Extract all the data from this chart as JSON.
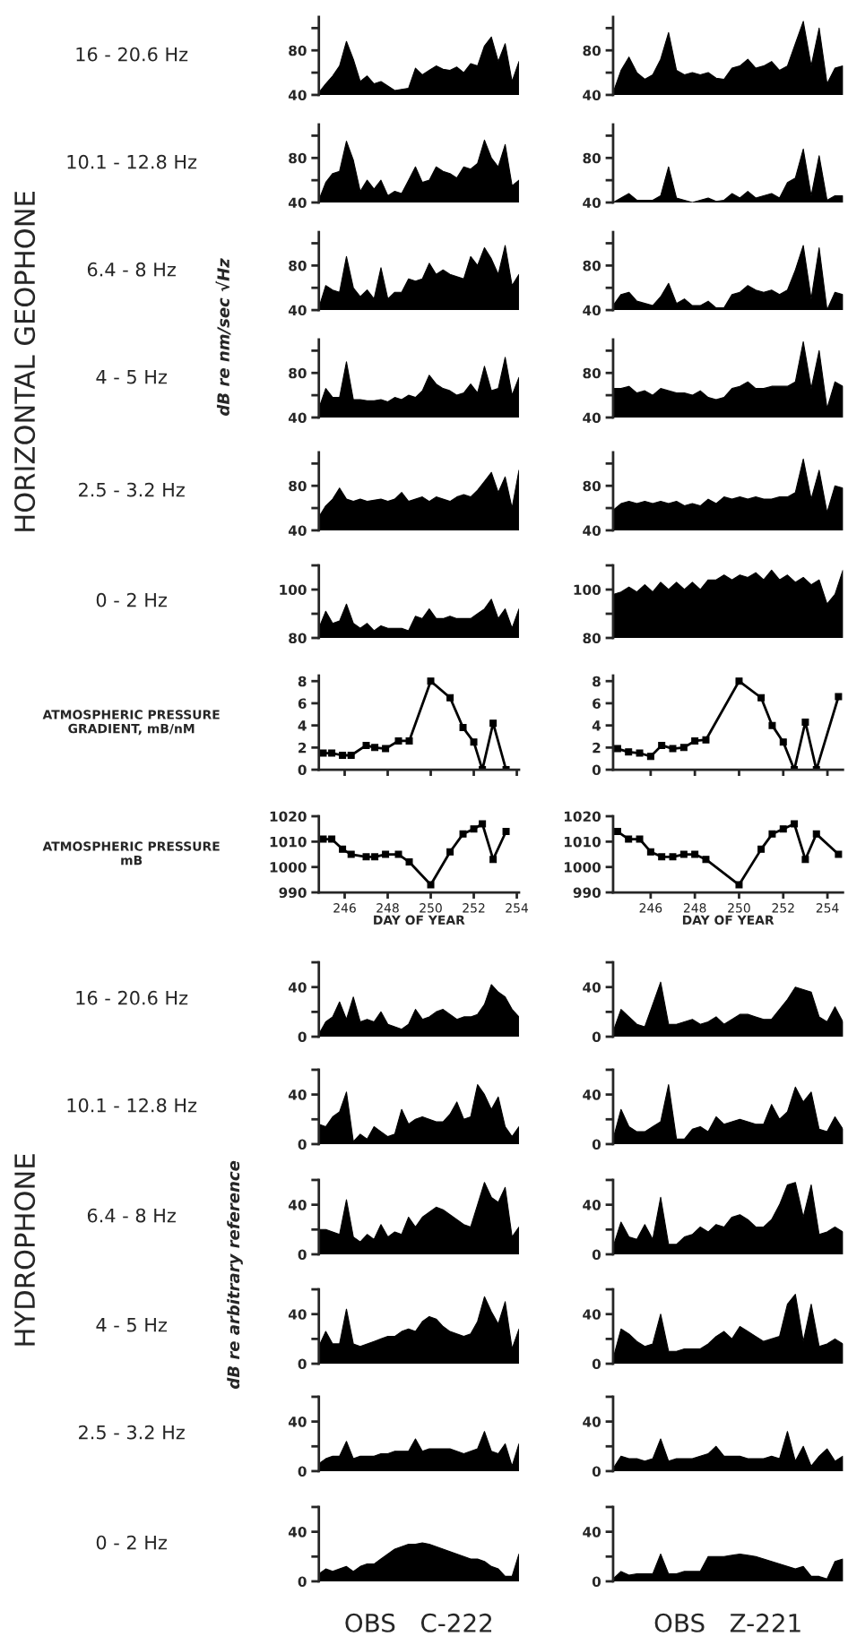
{
  "chart_data": [
    {
      "type": "area",
      "ylabel": "16 - 20.6 Hz",
      "categories": [
        null,
        null,
        null,
        null,
        null,
        null,
        null,
        null,
        null,
        null,
        null,
        null,
        null,
        null,
        null,
        null,
        null,
        null,
        null,
        null,
        null,
        null,
        null,
        null,
        null,
        null,
        null,
        null,
        null,
        null
      ],
      "values": [
        42,
        50,
        57,
        66,
        88,
        72,
        52,
        57,
        50,
        52,
        48,
        44,
        45,
        46,
        64,
        58,
        62,
        66,
        63,
        62,
        65,
        60,
        68,
        66,
        84,
        92,
        70,
        86,
        52,
        70
      ],
      "color": "#000000",
      "ylim": [
        40,
        110
      ],
      "yticks": [
        40,
        {
          "value": 60,
          "label": null
        },
        80,
        {
          "value": 100,
          "label": null
        }
      ]
    },
    {
      "type": "area",
      "categories": [
        null,
        null,
        null,
        null,
        null,
        null,
        null,
        null,
        null,
        null,
        null,
        null,
        null,
        null,
        null,
        null,
        null,
        null,
        null,
        null,
        null,
        null,
        null,
        null,
        null,
        null,
        null,
        null,
        null,
        null
      ],
      "values": [
        42,
        62,
        74,
        60,
        54,
        58,
        72,
        96,
        62,
        58,
        60,
        58,
        60,
        55,
        54,
        64,
        66,
        72,
        64,
        66,
        70,
        62,
        66,
        86,
        106,
        66,
        100,
        50,
        64,
        66
      ],
      "color": "#000000",
      "ylim": [
        40,
        110
      ],
      "yticks": [
        40,
        {
          "value": 60,
          "label": null
        },
        80,
        {
          "value": 100,
          "label": null
        }
      ]
    },
    {
      "type": "area",
      "ylabel": "10.1 - 12.8 Hz",
      "categories": [
        null,
        null,
        null,
        null,
        null,
        null,
        null,
        null,
        null,
        null,
        null,
        null,
        null,
        null,
        null,
        null,
        null,
        null,
        null,
        null,
        null,
        null,
        null,
        null,
        null,
        null,
        null,
        null,
        null,
        null
      ],
      "values": [
        42,
        58,
        66,
        68,
        95,
        78,
        50,
        60,
        52,
        60,
        46,
        50,
        48,
        60,
        72,
        58,
        60,
        72,
        68,
        66,
        62,
        72,
        70,
        75,
        96,
        80,
        72,
        92,
        55,
        60
      ],
      "color": "#000000",
      "ylim": [
        40,
        110
      ],
      "yticks": [
        40,
        {
          "value": 60,
          "label": null
        },
        80,
        {
          "value": 100,
          "label": null
        }
      ]
    },
    {
      "type": "area",
      "categories": [
        null,
        null,
        null,
        null,
        null,
        null,
        null,
        null,
        null,
        null,
        null,
        null,
        null,
        null,
        null,
        null,
        null,
        null,
        null,
        null,
        null,
        null,
        null,
        null,
        null,
        null,
        null,
        null,
        null,
        null
      ],
      "values": [
        40,
        44,
        48,
        42,
        42,
        42,
        46,
        72,
        44,
        42,
        40,
        42,
        44,
        41,
        42,
        48,
        44,
        50,
        44,
        46,
        48,
        44,
        58,
        62,
        88,
        46,
        82,
        42,
        46,
        46
      ],
      "color": "#000000",
      "ylim": [
        40,
        110
      ],
      "yticks": [
        40,
        {
          "value": 60,
          "label": null
        },
        80,
        {
          "value": 100,
          "label": null
        }
      ]
    },
    {
      "type": "area",
      "ylabel": "6.4 - 8 Hz",
      "categories": [
        null,
        null,
        null,
        null,
        null,
        null,
        null,
        null,
        null,
        null,
        null,
        null,
        null,
        null,
        null,
        null,
        null,
        null,
        null,
        null,
        null,
        null,
        null,
        null,
        null,
        null,
        null,
        null,
        null,
        null
      ],
      "values": [
        42,
        62,
        58,
        56,
        88,
        60,
        52,
        58,
        50,
        78,
        50,
        56,
        56,
        68,
        66,
        68,
        82,
        72,
        76,
        72,
        70,
        68,
        88,
        80,
        96,
        86,
        72,
        98,
        62,
        72
      ],
      "color": "#000000",
      "ylim": [
        40,
        110
      ],
      "yticks": [
        40,
        {
          "value": 60,
          "label": null
        },
        80,
        {
          "value": 100,
          "label": null
        }
      ]
    },
    {
      "type": "area",
      "categories": [
        null,
        null,
        null,
        null,
        null,
        null,
        null,
        null,
        null,
        null,
        null,
        null,
        null,
        null,
        null,
        null,
        null,
        null,
        null,
        null,
        null,
        null,
        null,
        null,
        null,
        null,
        null,
        null,
        null,
        null
      ],
      "values": [
        44,
        54,
        56,
        48,
        46,
        44,
        52,
        64,
        46,
        50,
        44,
        44,
        48,
        42,
        42,
        54,
        56,
        62,
        58,
        56,
        58,
        54,
        58,
        76,
        98,
        50,
        96,
        40,
        56,
        54
      ],
      "color": "#000000",
      "ylim": [
        40,
        110
      ],
      "yticks": [
        40,
        {
          "value": 60,
          "label": null
        },
        80,
        {
          "value": 100,
          "label": null
        }
      ]
    },
    {
      "type": "area",
      "ylabel": "4 - 5 Hz",
      "categories": [
        null,
        null,
        null,
        null,
        null,
        null,
        null,
        null,
        null,
        null,
        null,
        null,
        null,
        null,
        null,
        null,
        null,
        null,
        null,
        null,
        null,
        null,
        null,
        null,
        null,
        null,
        null,
        null,
        null,
        null
      ],
      "values": [
        48,
        66,
        58,
        58,
        90,
        56,
        56,
        55,
        55,
        56,
        54,
        58,
        56,
        60,
        58,
        64,
        78,
        70,
        66,
        64,
        60,
        62,
        70,
        62,
        86,
        64,
        66,
        94,
        60,
        76
      ],
      "color": "#000000",
      "ylim": [
        40,
        110
      ],
      "yticks": [
        40,
        {
          "value": 60,
          "label": null
        },
        80,
        {
          "value": 100,
          "label": null
        }
      ]
    },
    {
      "type": "area",
      "categories": [
        null,
        null,
        null,
        null,
        null,
        null,
        null,
        null,
        null,
        null,
        null,
        null,
        null,
        null,
        null,
        null,
        null,
        null,
        null,
        null,
        null,
        null,
        null,
        null,
        null,
        null,
        null,
        null,
        null,
        null
      ],
      "values": [
        66,
        66,
        68,
        62,
        64,
        60,
        66,
        64,
        62,
        62,
        60,
        64,
        58,
        56,
        58,
        66,
        68,
        72,
        66,
        66,
        68,
        68,
        68,
        72,
        108,
        66,
        100,
        48,
        72,
        68
      ],
      "color": "#000000",
      "ylim": [
        40,
        110
      ],
      "yticks": [
        40,
        {
          "value": 60,
          "label": null
        },
        80,
        {
          "value": 100,
          "label": null
        }
      ]
    },
    {
      "type": "area",
      "ylabel": "2.5 - 3.2 Hz",
      "categories": [
        null,
        null,
        null,
        null,
        null,
        null,
        null,
        null,
        null,
        null,
        null,
        null,
        null,
        null,
        null,
        null,
        null,
        null,
        null,
        null,
        null,
        null,
        null,
        null,
        null,
        null,
        null,
        null,
        null,
        null
      ],
      "values": [
        52,
        62,
        68,
        78,
        68,
        66,
        68,
        66,
        67,
        68,
        66,
        68,
        74,
        66,
        68,
        70,
        66,
        70,
        68,
        66,
        70,
        72,
        70,
        76,
        84,
        92,
        74,
        88,
        60,
        94
      ],
      "color": "#000000",
      "ylim": [
        40,
        110
      ],
      "yticks": [
        40,
        {
          "value": 60,
          "label": null
        },
        80,
        {
          "value": 100,
          "label": null
        }
      ]
    },
    {
      "type": "area",
      "categories": [
        null,
        null,
        null,
        null,
        null,
        null,
        null,
        null,
        null,
        null,
        null,
        null,
        null,
        null,
        null,
        null,
        null,
        null,
        null,
        null,
        null,
        null,
        null,
        null,
        null,
        null,
        null,
        null,
        null,
        null
      ],
      "values": [
        58,
        64,
        66,
        64,
        66,
        64,
        66,
        64,
        66,
        62,
        64,
        62,
        68,
        64,
        70,
        68,
        70,
        68,
        70,
        68,
        68,
        70,
        70,
        74,
        104,
        68,
        94,
        56,
        80,
        78
      ],
      "color": "#000000",
      "ylim": [
        40,
        110
      ],
      "yticks": [
        40,
        {
          "value": 60,
          "label": null
        },
        80,
        {
          "value": 100,
          "label": null
        }
      ]
    },
    {
      "type": "area",
      "ylabel": "0 - 2 Hz",
      "categories": [
        null,
        null,
        null,
        null,
        null,
        null,
        null,
        null,
        null,
        null,
        null,
        null,
        null,
        null,
        null,
        null,
        null,
        null,
        null,
        null,
        null,
        null,
        null,
        null,
        null,
        null,
        null,
        null,
        null,
        null
      ],
      "values": [
        84,
        91,
        86,
        87,
        94,
        86,
        84,
        86,
        83,
        85,
        84,
        84,
        84,
        83,
        89,
        88,
        92,
        88,
        88,
        89,
        88,
        88,
        88,
        90,
        92,
        96,
        88,
        92,
        84,
        92
      ],
      "color": "#000000",
      "ylim": [
        80,
        110
      ],
      "yticks": [
        80,
        {
          "value": 90,
          "label": null
        },
        100,
        {
          "value": 110,
          "label": null
        }
      ]
    },
    {
      "type": "area",
      "categories": [
        null,
        null,
        null,
        null,
        null,
        null,
        null,
        null,
        null,
        null,
        null,
        null,
        null,
        null,
        null,
        null,
        null,
        null,
        null,
        null,
        null,
        null,
        null,
        null,
        null,
        null,
        null,
        null,
        null,
        null
      ],
      "values": [
        98,
        99,
        101,
        99,
        102,
        99,
        103,
        100,
        103,
        100,
        103,
        100,
        104,
        104,
        106,
        104,
        106,
        105,
        107,
        104,
        108,
        104,
        106,
        103,
        105,
        102,
        104,
        94,
        98,
        108
      ],
      "color": "#000000",
      "ylim": [
        80,
        110
      ],
      "yticks": [
        80,
        {
          "value": 90,
          "label": null
        },
        100,
        {
          "value": 110,
          "label": null
        }
      ]
    },
    {
      "type": "line",
      "ylabel": "ATMOSPHERIC PRESSURE\nGRADIENT, mB/nM",
      "x": [
        245.0,
        245.4,
        245.9,
        246.3,
        247.0,
        247.4,
        247.9,
        248.5,
        249.0,
        250.0,
        250.9,
        251.5,
        252.0,
        252.4,
        252.9,
        253.5
      ],
      "values": [
        1.5,
        1.5,
        1.3,
        1.3,
        2.2,
        2.0,
        1.9,
        2.6,
        2.6,
        8.0,
        6.5,
        3.8,
        2.5,
        0,
        4.2,
        0
      ],
      "color": "#000000",
      "marker": "square",
      "xlim": [
        244.8,
        254.1
      ],
      "xticks": [
        246,
        248,
        250,
        252,
        254
      ],
      "ylim": [
        0,
        8.5
      ],
      "yticks": [
        0,
        2,
        4,
        6,
        8
      ],
      "tick_labels": "y"
    },
    {
      "type": "line",
      "x": [
        244.5,
        245.0,
        245.5,
        246.0,
        246.5,
        247.0,
        247.5,
        248.0,
        248.5,
        250.0,
        251.0,
        251.5,
        252.0,
        252.5,
        253.0,
        253.5,
        254.5
      ],
      "values": [
        1.9,
        1.6,
        1.5,
        1.2,
        2.2,
        1.9,
        2.0,
        2.6,
        2.7,
        8.0,
        6.5,
        4.0,
        2.5,
        0,
        4.3,
        0,
        6.6
      ],
      "color": "#000000",
      "marker": "square",
      "xlim": [
        244.3,
        254.7
      ],
      "xticks": [
        246,
        248,
        250,
        252,
        254
      ],
      "ylim": [
        0,
        8.5
      ],
      "yticks": [
        0,
        2,
        4,
        6,
        8
      ],
      "tick_labels": "y"
    },
    {
      "type": "line",
      "ylabel": "ATMOSPHERIC PRESSURE\nmB",
      "xlabel": "DAY OF YEAR",
      "x": [
        245.0,
        245.4,
        245.9,
        246.3,
        247.0,
        247.4,
        247.9,
        248.5,
        249.0,
        250.0,
        250.9,
        251.5,
        252.0,
        252.4,
        252.9,
        253.5
      ],
      "values": [
        1011,
        1011,
        1007,
        1005,
        1004,
        1004,
        1005,
        1005,
        1002,
        993,
        1006,
        1013,
        1015,
        1017,
        1003,
        1014
      ],
      "color": "#000000",
      "marker": "square",
      "xlim": [
        244.8,
        254.1
      ],
      "xticks": [
        246,
        248,
        250,
        252,
        254
      ],
      "ylim": [
        990,
        1020
      ],
      "yticks": [
        990,
        1000,
        1010,
        1020
      ]
    },
    {
      "type": "line",
      "xlabel": "DAY OF YEAR",
      "x": [
        244.5,
        245.0,
        245.5,
        246.0,
        246.5,
        247.0,
        247.5,
        248.0,
        248.5,
        250.0,
        251.0,
        251.5,
        252.0,
        252.5,
        253.0,
        253.5,
        254.5
      ],
      "values": [
        1014,
        1011,
        1011,
        1006,
        1004,
        1004,
        1005,
        1005,
        1003,
        993,
        1007,
        1013,
        1015,
        1017,
        1003,
        1013,
        1005
      ],
      "color": "#000000",
      "marker": "square",
      "xlim": [
        244.3,
        254.7
      ],
      "xticks": [
        246,
        248,
        250,
        252,
        254
      ],
      "ylim": [
        990,
        1020
      ],
      "yticks": [
        990,
        1000,
        1010,
        1020
      ]
    },
    {
      "type": "area",
      "ylabel": "16 - 20.6 Hz",
      "categories": [
        null,
        null,
        null,
        null,
        null,
        null,
        null,
        null,
        null,
        null,
        null,
        null,
        null,
        null,
        null,
        null,
        null,
        null,
        null,
        null,
        null,
        null,
        null,
        null,
        null,
        null,
        null,
        null,
        null,
        null
      ],
      "values": [
        2,
        12,
        16,
        28,
        14,
        32,
        12,
        14,
        12,
        20,
        10,
        8,
        6,
        10,
        22,
        14,
        16,
        20,
        22,
        18,
        14,
        16,
        16,
        18,
        26,
        42,
        36,
        32,
        22,
        16
      ],
      "color": "#000000",
      "ylim": [
        0,
        60
      ],
      "yticks": [
        0,
        {
          "value": 20,
          "label": null
        },
        40,
        {
          "value": 60,
          "label": null
        }
      ]
    },
    {
      "type": "area",
      "categories": [
        null,
        null,
        null,
        null,
        null,
        null,
        null,
        null,
        null,
        null,
        null,
        null,
        null,
        null,
        null,
        null,
        null,
        null,
        null,
        null,
        null,
        null,
        null,
        null,
        null,
        null,
        null,
        null,
        null,
        null
      ],
      "values": [
        4,
        22,
        16,
        10,
        8,
        26,
        44,
        10,
        10,
        12,
        14,
        10,
        12,
        16,
        10,
        14,
        18,
        18,
        16,
        14,
        14,
        22,
        30,
        40,
        38,
        36,
        16,
        12,
        24,
        12
      ],
      "color": "#000000",
      "ylim": [
        0,
        60
      ],
      "yticks": [
        0,
        {
          "value": 20,
          "label": null
        },
        40,
        {
          "value": 60,
          "label": null
        }
      ]
    },
    {
      "type": "area",
      "ylabel": "10.1 - 12.8 Hz",
      "categories": [
        null,
        null,
        null,
        null,
        null,
        null,
        null,
        null,
        null,
        null,
        null,
        null,
        null,
        null,
        null,
        null,
        null,
        null,
        null,
        null,
        null,
        null,
        null,
        null,
        null,
        null,
        null,
        null,
        null,
        null
      ],
      "values": [
        16,
        14,
        22,
        26,
        42,
        2,
        8,
        4,
        14,
        10,
        6,
        8,
        28,
        16,
        20,
        22,
        20,
        18,
        18,
        24,
        34,
        20,
        22,
        48,
        40,
        28,
        38,
        14,
        6,
        14
      ],
      "color": "#000000",
      "ylim": [
        0,
        60
      ],
      "yticks": [
        0,
        {
          "value": 20,
          "label": null
        },
        40,
        {
          "value": 60,
          "label": null
        }
      ]
    },
    {
      "type": "area",
      "categories": [
        null,
        null,
        null,
        null,
        null,
        null,
        null,
        null,
        null,
        null,
        null,
        null,
        null,
        null,
        null,
        null,
        null,
        null,
        null,
        null,
        null,
        null,
        null,
        null,
        null,
        null,
        null,
        null,
        null,
        null
      ],
      "values": [
        4,
        28,
        14,
        10,
        10,
        14,
        18,
        48,
        4,
        4,
        12,
        14,
        10,
        22,
        16,
        18,
        20,
        18,
        16,
        16,
        32,
        20,
        26,
        46,
        34,
        42,
        12,
        10,
        22,
        12
      ],
      "color": "#000000",
      "ylim": [
        0,
        60
      ],
      "yticks": [
        0,
        {
          "value": 20,
          "label": null
        },
        40,
        {
          "value": 60,
          "label": null
        }
      ]
    },
    {
      "type": "area",
      "ylabel": "6.4 - 8 Hz",
      "categories": [
        null,
        null,
        null,
        null,
        null,
        null,
        null,
        null,
        null,
        null,
        null,
        null,
        null,
        null,
        null,
        null,
        null,
        null,
        null,
        null,
        null,
        null,
        null,
        null,
        null,
        null,
        null,
        null,
        null,
        null
      ],
      "values": [
        20,
        20,
        18,
        16,
        44,
        14,
        10,
        16,
        12,
        24,
        14,
        18,
        16,
        30,
        22,
        30,
        34,
        38,
        36,
        32,
        28,
        24,
        22,
        40,
        58,
        46,
        42,
        54,
        14,
        22
      ],
      "color": "#000000",
      "ylim": [
        0,
        60
      ],
      "yticks": [
        0,
        {
          "value": 20,
          "label": null
        },
        40,
        {
          "value": 60,
          "label": null
        }
      ]
    },
    {
      "type": "area",
      "categories": [
        null,
        null,
        null,
        null,
        null,
        null,
        null,
        null,
        null,
        null,
        null,
        null,
        null,
        null,
        null,
        null,
        null,
        null,
        null,
        null,
        null,
        null,
        null,
        null,
        null,
        null,
        null,
        null,
        null,
        null
      ],
      "values": [
        6,
        26,
        14,
        12,
        24,
        12,
        46,
        8,
        8,
        14,
        16,
        22,
        18,
        24,
        22,
        30,
        32,
        28,
        22,
        22,
        28,
        40,
        56,
        58,
        30,
        56,
        16,
        18,
        22,
        18
      ],
      "color": "#000000",
      "ylim": [
        0,
        60
      ],
      "yticks": [
        0,
        {
          "value": 20,
          "label": null
        },
        40,
        {
          "value": 60,
          "label": null
        }
      ]
    },
    {
      "type": "area",
      "ylabel": "4 - 5 Hz",
      "categories": [
        null,
        null,
        null,
        null,
        null,
        null,
        null,
        null,
        null,
        null,
        null,
        null,
        null,
        null,
        null,
        null,
        null,
        null,
        null,
        null,
        null,
        null,
        null,
        null,
        null,
        null,
        null,
        null,
        null,
        null
      ],
      "values": [
        14,
        26,
        16,
        16,
        44,
        16,
        14,
        16,
        18,
        20,
        22,
        22,
        26,
        28,
        26,
        34,
        38,
        36,
        30,
        26,
        24,
        22,
        24,
        34,
        54,
        42,
        32,
        50,
        12,
        28
      ],
      "color": "#000000",
      "ylim": [
        0,
        60
      ],
      "yticks": [
        0,
        {
          "value": 20,
          "label": null
        },
        40,
        {
          "value": 60,
          "label": null
        }
      ]
    },
    {
      "type": "area",
      "categories": [
        null,
        null,
        null,
        null,
        null,
        null,
        null,
        null,
        null,
        null,
        null,
        null,
        null,
        null,
        null,
        null,
        null,
        null,
        null,
        null,
        null,
        null,
        null,
        null,
        null,
        null,
        null,
        null,
        null,
        null
      ],
      "values": [
        4,
        28,
        24,
        18,
        14,
        16,
        40,
        10,
        10,
        12,
        12,
        12,
        16,
        22,
        26,
        20,
        30,
        26,
        22,
        18,
        20,
        22,
        48,
        56,
        18,
        48,
        14,
        16,
        20,
        16
      ],
      "color": "#000000",
      "ylim": [
        0,
        60
      ],
      "yticks": [
        0,
        {
          "value": 20,
          "label": null
        },
        40,
        {
          "value": 60,
          "label": null
        }
      ]
    },
    {
      "type": "area",
      "ylabel": "2.5 - 3.2 Hz",
      "categories": [
        null,
        null,
        null,
        null,
        null,
        null,
        null,
        null,
        null,
        null,
        null,
        null,
        null,
        null,
        null,
        null,
        null,
        null,
        null,
        null,
        null,
        null,
        null,
        null,
        null,
        null,
        null,
        null,
        null,
        null
      ],
      "values": [
        6,
        10,
        12,
        12,
        24,
        10,
        12,
        12,
        12,
        14,
        14,
        16,
        16,
        16,
        26,
        16,
        18,
        18,
        18,
        18,
        16,
        14,
        16,
        18,
        32,
        16,
        14,
        22,
        4,
        22
      ],
      "color": "#000000",
      "ylim": [
        0,
        60
      ],
      "yticks": [
        0,
        {
          "value": 20,
          "label": null
        },
        40,
        {
          "value": 60,
          "label": null
        }
      ]
    },
    {
      "type": "area",
      "categories": [
        null,
        null,
        null,
        null,
        null,
        null,
        null,
        null,
        null,
        null,
        null,
        null,
        null,
        null,
        null,
        null,
        null,
        null,
        null,
        null,
        null,
        null,
        null,
        null,
        null,
        null,
        null,
        null,
        null,
        null
      ],
      "values": [
        2,
        12,
        10,
        10,
        8,
        10,
        26,
        8,
        10,
        10,
        10,
        12,
        14,
        20,
        12,
        12,
        12,
        10,
        10,
        10,
        12,
        10,
        32,
        8,
        20,
        4,
        12,
        18,
        8,
        12
      ],
      "color": "#000000",
      "ylim": [
        0,
        60
      ],
      "yticks": [
        0,
        {
          "value": 20,
          "label": null
        },
        40,
        {
          "value": 60,
          "label": null
        }
      ]
    },
    {
      "type": "area",
      "ylabel": "0 - 2 Hz",
      "xlabel": "OBS   C-222",
      "categories": [
        null,
        null,
        null,
        null,
        null,
        null,
        null,
        null,
        null,
        null,
        null,
        null,
        null,
        null,
        null,
        null,
        null,
        null,
        null,
        null,
        null,
        null,
        null,
        null,
        null,
        null,
        null,
        null,
        null,
        null
      ],
      "values": [
        6,
        10,
        8,
        10,
        12,
        8,
        12,
        14,
        14,
        18,
        22,
        26,
        28,
        30,
        30,
        31,
        30,
        28,
        26,
        24,
        22,
        20,
        18,
        18,
        16,
        12,
        10,
        4,
        4,
        22
      ],
      "color": "#000000",
      "ylim": [
        0,
        60
      ],
      "yticks": [
        0,
        {
          "value": 20,
          "label": null
        },
        40,
        {
          "value": 60,
          "label": null
        }
      ]
    },
    {
      "type": "area",
      "xlabel": "OBS   Z-221",
      "categories": [
        null,
        null,
        null,
        null,
        null,
        null,
        null,
        null,
        null,
        null,
        null,
        null,
        null,
        null,
        null,
        null,
        null,
        null,
        null,
        null,
        null,
        null,
        null,
        null,
        null,
        null,
        null,
        null,
        null,
        null
      ],
      "values": [
        2,
        8,
        5,
        6,
        6,
        6,
        22,
        6,
        6,
        8,
        8,
        8,
        20,
        20,
        20,
        21,
        22,
        21,
        20,
        18,
        16,
        14,
        12,
        10,
        12,
        4,
        4,
        2,
        16,
        18
      ],
      "color": "#000000",
      "ylim": [
        0,
        60
      ],
      "yticks": [
        0,
        {
          "value": 20,
          "label": null
        },
        40,
        {
          "value": 60,
          "label": null
        }
      ]
    },
    {
      "type": "other",
      "title": "HORIZONTAL GEOPHONE"
    },
    {
      "type": "other",
      "ylabel": "dB re nm/sec √Hz"
    },
    {
      "type": "other",
      "title": "HYDROPHONE"
    },
    {
      "type": "other",
      "ylabel": "dB re arbitrary reference"
    }
  ]
}
